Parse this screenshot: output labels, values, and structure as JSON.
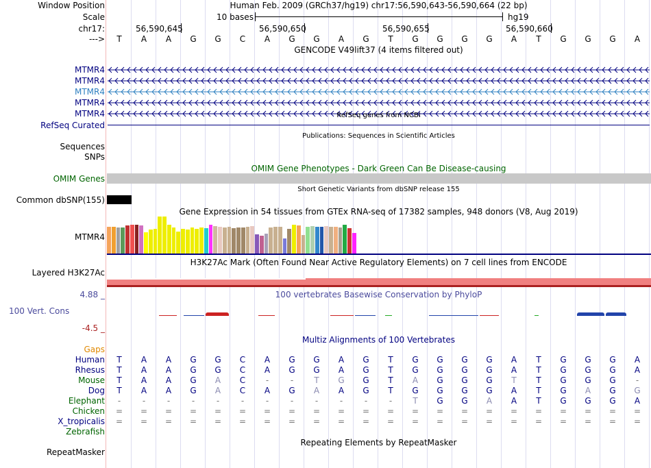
{
  "header": {
    "window_position_label": "Window Position",
    "window_position_value": "Human Feb. 2009 (GRCh37/hg19)   chr17:56,590,643-56,590,664 (22 bp)",
    "scale_label": "Scale",
    "scale_value": "10 bases",
    "scale_assembly": "hg19",
    "chrom_label": "chr17:",
    "strand_label": "--->",
    "positions": [
      "56,590,645",
      "56,590,650",
      "56,590,655",
      "56,590,660"
    ]
  },
  "sequence": [
    "T",
    "A",
    "A",
    "G",
    "G",
    "C",
    "A",
    "G",
    "G",
    "A",
    "G",
    "T",
    "G",
    "G",
    "G",
    "G",
    "A",
    "T",
    "G",
    "G",
    "G",
    "A"
  ],
  "gencode": {
    "title": "GENCODE V49lift37 (4 items filtered out)",
    "tracks": [
      "MTMR4",
      "MTMR4",
      "MTMR4",
      "MTMR4",
      "MTMR4"
    ],
    "highlight_index": 2
  },
  "refseq": {
    "title": "RefSeq genes from NCBI",
    "label": "RefSeq Curated"
  },
  "publications": {
    "title": "Publications: Sequences in Scientific Articles",
    "sequences_label": "Sequences",
    "snps_label": "SNPs"
  },
  "omim": {
    "title": "OMIM Gene Phenotypes - Dark Green Can Be Disease-causing",
    "label": "OMIM Genes"
  },
  "dbsnp": {
    "title": "Short Genetic Variants from dbSNP release 155",
    "label": "Common dbSNP(155)"
  },
  "gtex": {
    "title": "Gene Expression in 54 tissues from GTEx RNA-seq of 17382 samples, 948 donors (V8, Aug 2019)",
    "label": "MTMR4",
    "bars": [
      {
        "v": 0.72,
        "c": "#f5a35a"
      },
      {
        "v": 0.72,
        "c": "#f0a030"
      },
      {
        "v": 0.7,
        "c": "#9fa0a0"
      },
      {
        "v": 0.7,
        "c": "#5a9a5a"
      },
      {
        "v": 0.75,
        "c": "#c03030"
      },
      {
        "v": 0.78,
        "c": "#f05050"
      },
      {
        "v": 0.78,
        "c": "#882020"
      },
      {
        "v": 0.76,
        "c": "#d070c0"
      },
      {
        "v": 0.58,
        "c": "#ffff00"
      },
      {
        "v": 0.64,
        "c": "#eeee00"
      },
      {
        "v": 0.66,
        "c": "#eeee00"
      },
      {
        "v": 1.0,
        "c": "#eeee00"
      },
      {
        "v": 1.0,
        "c": "#eeee00"
      },
      {
        "v": 0.78,
        "c": "#eeee00"
      },
      {
        "v": 0.7,
        "c": "#eeee00"
      },
      {
        "v": 0.6,
        "c": "#eeee00"
      },
      {
        "v": 0.66,
        "c": "#eeee00"
      },
      {
        "v": 0.64,
        "c": "#eeee00"
      },
      {
        "v": 0.7,
        "c": "#eeee00"
      },
      {
        "v": 0.66,
        "c": "#eeee00"
      },
      {
        "v": 0.7,
        "c": "#eeee00"
      },
      {
        "v": 0.68,
        "c": "#22cccc"
      },
      {
        "v": 0.78,
        "c": "#ff30ff"
      },
      {
        "v": 0.74,
        "c": "#cfb8a0"
      },
      {
        "v": 0.72,
        "c": "#e8c8c0"
      },
      {
        "v": 0.7,
        "c": "#c8b090"
      },
      {
        "v": 0.72,
        "c": "#c8b090"
      },
      {
        "v": 0.68,
        "c": "#a08868"
      },
      {
        "v": 0.7,
        "c": "#a08868"
      },
      {
        "v": 0.7,
        "c": "#a08868"
      },
      {
        "v": 0.72,
        "c": "#c8b090"
      },
      {
        "v": 0.74,
        "c": "#e8c8c0"
      },
      {
        "v": 0.52,
        "c": "#8858b8"
      },
      {
        "v": 0.48,
        "c": "#c06090"
      },
      {
        "v": 0.54,
        "c": "#a8a0b8"
      },
      {
        "v": 0.7,
        "c": "#c8b090"
      },
      {
        "v": 0.72,
        "c": "#c8b090"
      },
      {
        "v": 0.72,
        "c": "#c8b090"
      },
      {
        "v": 0.4,
        "c": "#7a7ad8"
      },
      {
        "v": 0.66,
        "c": "#a08868"
      },
      {
        "v": 0.78,
        "c": "#eeee00"
      },
      {
        "v": 0.76,
        "c": "#f5a35a"
      },
      {
        "v": 0.5,
        "c": "#c8b090"
      },
      {
        "v": 0.72,
        "c": "#90e090"
      },
      {
        "v": 0.74,
        "c": "#b0d0b0"
      },
      {
        "v": 0.72,
        "c": "#3388cc"
      },
      {
        "v": 0.72,
        "c": "#2255aa"
      },
      {
        "v": 0.74,
        "c": "#e8c8c0"
      },
      {
        "v": 0.72,
        "c": "#c8b090"
      },
      {
        "v": 0.72,
        "c": "#f0b080"
      },
      {
        "v": 0.7,
        "c": "#a8a090"
      },
      {
        "v": 0.78,
        "c": "#22aa44"
      },
      {
        "v": 0.68,
        "c": "#cc3333"
      },
      {
        "v": 0.55,
        "c": "#ff22ff"
      }
    ]
  },
  "h3k27ac": {
    "title": "H3K27Ac Mark (Often Found Near Active Regulatory Elements) on 7 cell lines from ENCODE",
    "label": "Layered H3K27Ac"
  },
  "cons100": {
    "title": "100 vertebrates Basewise Conservation by PhyloP",
    "label": "100 Vert. Cons",
    "max_label": "4.88 _",
    "min_label": "-4.5 _"
  },
  "multiz": {
    "title": "Multiz Alignments of 100 Vertebrates",
    "gaps_label": "Gaps",
    "species": [
      {
        "name": "Human",
        "color": "#000080",
        "bases": [
          "T",
          "A",
          "A",
          "G",
          "G",
          "C",
          "A",
          "G",
          "G",
          "A",
          "G",
          "T",
          "G",
          "G",
          "G",
          "G",
          "A",
          "T",
          "G",
          "G",
          "G",
          "A"
        ]
      },
      {
        "name": "Rhesus",
        "color": "#000080",
        "bases": [
          "T",
          "A",
          "A",
          "G",
          "G",
          "C",
          "A",
          "G",
          "G",
          "A",
          "G",
          "T",
          "G",
          "G",
          "G",
          "G",
          "A",
          "T",
          "G",
          "G",
          "G",
          "A"
        ]
      },
      {
        "name": "Mouse",
        "color": "#006400",
        "bases": [
          "T",
          "A",
          "A",
          "G",
          "A",
          "C",
          "-",
          "-",
          "T",
          "G",
          "G",
          "T",
          "A",
          "G",
          "G",
          "G",
          "T",
          "T",
          "G",
          "G",
          "G",
          "-"
        ]
      },
      {
        "name": "Dog",
        "color": "#000080",
        "bases": [
          "T",
          "A",
          "A",
          "G",
          "A",
          "C",
          "A",
          "G",
          "A",
          "A",
          "G",
          "T",
          "G",
          "G",
          "G",
          "G",
          "A",
          "T",
          "G",
          "A",
          "G",
          "G"
        ]
      },
      {
        "name": "Elephant",
        "color": "#006400",
        "bases": [
          "-",
          "-",
          "-",
          "-",
          "-",
          "-",
          "-",
          "-",
          "-",
          "-",
          "-",
          "-",
          "T",
          "G",
          "G",
          "A",
          "A",
          "T",
          "G",
          "G",
          "G",
          "A"
        ]
      },
      {
        "name": "Chicken",
        "color": "#006400",
        "bases": [
          "=",
          "=",
          "=",
          "=",
          "=",
          "=",
          "=",
          "=",
          "=",
          "=",
          "=",
          "=",
          "=",
          "=",
          "=",
          "=",
          "=",
          "=",
          "=",
          "=",
          "=",
          "="
        ]
      },
      {
        "name": "X_tropicalis",
        "color": "#000080",
        "bases": [
          "=",
          "=",
          "=",
          "=",
          "=",
          "=",
          "=",
          "=",
          "=",
          "=",
          "=",
          "=",
          "=",
          "=",
          "=",
          "=",
          "=",
          "=",
          "=",
          "=",
          "=",
          "="
        ]
      },
      {
        "name": "Zebrafish",
        "color": "#006400",
        "bases": []
      }
    ]
  },
  "repeatmasker": {
    "title": "Repeating Elements by RepeatMasker",
    "label": "RepeatMasker"
  },
  "colors": {
    "gene": "#000080",
    "gene_highlight": "#2c7fc0",
    "omim_gray": "#c8c8c8",
    "track_green": "#006400",
    "gaps_orange": "#e08800",
    "cons_title": "#4a4a9c",
    "h3k27ac_bar": "#f08080"
  }
}
